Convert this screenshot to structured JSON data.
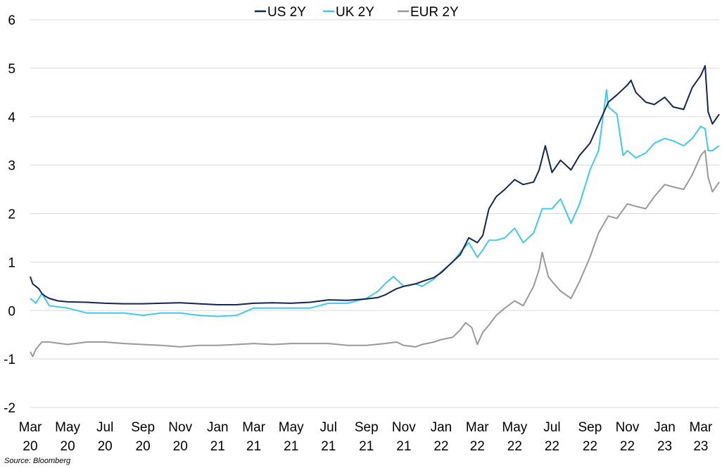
{
  "source": "Source: Bloomberg",
  "chart_data": {
    "type": "line",
    "title": "",
    "xlabel": "",
    "ylabel": "",
    "ylim": [
      -2,
      6
    ],
    "yticks": [
      -2,
      -1,
      0,
      1,
      2,
      3,
      4,
      5,
      6
    ],
    "grid": "horizontal",
    "legend_position": "top-center",
    "x_start": "2020-03-01",
    "x_end": "2023-03-31",
    "x_ticks": [
      {
        "month": "Mar",
        "year": "20",
        "date": "2020-03-01"
      },
      {
        "month": "May",
        "year": "20",
        "date": "2020-05-01"
      },
      {
        "month": "Jul",
        "year": "20",
        "date": "2020-07-01"
      },
      {
        "month": "Sep",
        "year": "20",
        "date": "2020-09-01"
      },
      {
        "month": "Nov",
        "year": "20",
        "date": "2020-11-01"
      },
      {
        "month": "Jan",
        "year": "21",
        "date": "2021-01-01"
      },
      {
        "month": "Mar",
        "year": "21",
        "date": "2021-03-01"
      },
      {
        "month": "May",
        "year": "21",
        "date": "2021-05-01"
      },
      {
        "month": "Jul",
        "year": "21",
        "date": "2021-07-01"
      },
      {
        "month": "Sep",
        "year": "21",
        "date": "2021-09-01"
      },
      {
        "month": "Nov",
        "year": "21",
        "date": "2021-11-01"
      },
      {
        "month": "Jan",
        "year": "22",
        "date": "2022-01-01"
      },
      {
        "month": "Mar",
        "year": "22",
        "date": "2022-03-01"
      },
      {
        "month": "May",
        "year": "22",
        "date": "2022-05-01"
      },
      {
        "month": "Jul",
        "year": "22",
        "date": "2022-07-01"
      },
      {
        "month": "Sep",
        "year": "22",
        "date": "2022-09-01"
      },
      {
        "month": "Nov",
        "year": "22",
        "date": "2022-11-01"
      },
      {
        "month": "Jan",
        "year": "23",
        "date": "2023-01-01"
      },
      {
        "month": "Mar",
        "year": "23",
        "date": "2023-03-01"
      }
    ],
    "series": [
      {
        "name": "US 2Y",
        "color": "#14254f",
        "points": [
          [
            "2020-03-01",
            0.7
          ],
          [
            "2020-03-05",
            0.55
          ],
          [
            "2020-03-10",
            0.5
          ],
          [
            "2020-03-15",
            0.45
          ],
          [
            "2020-03-20",
            0.35
          ],
          [
            "2020-03-25",
            0.3
          ],
          [
            "2020-04-01",
            0.25
          ],
          [
            "2020-04-15",
            0.2
          ],
          [
            "2020-05-01",
            0.18
          ],
          [
            "2020-06-01",
            0.17
          ],
          [
            "2020-07-01",
            0.15
          ],
          [
            "2020-08-01",
            0.14
          ],
          [
            "2020-09-01",
            0.14
          ],
          [
            "2020-10-01",
            0.15
          ],
          [
            "2020-11-01",
            0.16
          ],
          [
            "2020-12-01",
            0.14
          ],
          [
            "2021-01-01",
            0.12
          ],
          [
            "2021-02-01",
            0.12
          ],
          [
            "2021-03-01",
            0.15
          ],
          [
            "2021-04-01",
            0.16
          ],
          [
            "2021-05-01",
            0.15
          ],
          [
            "2021-06-01",
            0.17
          ],
          [
            "2021-07-01",
            0.22
          ],
          [
            "2021-08-01",
            0.21
          ],
          [
            "2021-09-01",
            0.24
          ],
          [
            "2021-09-20",
            0.27
          ],
          [
            "2021-10-01",
            0.32
          ],
          [
            "2021-10-20",
            0.45
          ],
          [
            "2021-11-01",
            0.5
          ],
          [
            "2021-11-20",
            0.55
          ],
          [
            "2021-12-01",
            0.6
          ],
          [
            "2021-12-20",
            0.68
          ],
          [
            "2022-01-01",
            0.78
          ],
          [
            "2022-01-15",
            0.95
          ],
          [
            "2022-02-01",
            1.15
          ],
          [
            "2022-02-15",
            1.5
          ],
          [
            "2022-03-01",
            1.4
          ],
          [
            "2022-03-10",
            1.55
          ],
          [
            "2022-03-20",
            2.1
          ],
          [
            "2022-04-01",
            2.35
          ],
          [
            "2022-04-15",
            2.5
          ],
          [
            "2022-05-01",
            2.7
          ],
          [
            "2022-05-15",
            2.6
          ],
          [
            "2022-06-01",
            2.65
          ],
          [
            "2022-06-10",
            2.9
          ],
          [
            "2022-06-20",
            3.4
          ],
          [
            "2022-07-01",
            2.85
          ],
          [
            "2022-07-15",
            3.1
          ],
          [
            "2022-08-01",
            2.9
          ],
          [
            "2022-08-15",
            3.2
          ],
          [
            "2022-09-01",
            3.45
          ],
          [
            "2022-09-15",
            3.85
          ],
          [
            "2022-10-01",
            4.3
          ],
          [
            "2022-10-15",
            4.45
          ],
          [
            "2022-11-01",
            4.65
          ],
          [
            "2022-11-07",
            4.75
          ],
          [
            "2022-11-15",
            4.5
          ],
          [
            "2022-12-01",
            4.3
          ],
          [
            "2022-12-15",
            4.25
          ],
          [
            "2023-01-01",
            4.4
          ],
          [
            "2023-01-15",
            4.2
          ],
          [
            "2023-02-01",
            4.15
          ],
          [
            "2023-02-15",
            4.6
          ],
          [
            "2023-03-01",
            4.85
          ],
          [
            "2023-03-08",
            5.05
          ],
          [
            "2023-03-13",
            4.1
          ],
          [
            "2023-03-20",
            3.85
          ],
          [
            "2023-03-31",
            4.05
          ]
        ]
      },
      {
        "name": "UK 2Y",
        "color": "#42c8ee",
        "points": [
          [
            "2020-03-01",
            0.25
          ],
          [
            "2020-03-10",
            0.15
          ],
          [
            "2020-03-20",
            0.35
          ],
          [
            "2020-04-01",
            0.1
          ],
          [
            "2020-05-01",
            0.05
          ],
          [
            "2020-06-01",
            -0.05
          ],
          [
            "2020-07-01",
            -0.05
          ],
          [
            "2020-08-01",
            -0.05
          ],
          [
            "2020-09-01",
            -0.1
          ],
          [
            "2020-10-01",
            -0.05
          ],
          [
            "2020-11-01",
            -0.05
          ],
          [
            "2020-12-01",
            -0.1
          ],
          [
            "2021-01-01",
            -0.12
          ],
          [
            "2021-02-01",
            -0.1
          ],
          [
            "2021-03-01",
            0.05
          ],
          [
            "2021-04-01",
            0.05
          ],
          [
            "2021-05-01",
            0.05
          ],
          [
            "2021-06-01",
            0.05
          ],
          [
            "2021-07-01",
            0.15
          ],
          [
            "2021-08-01",
            0.15
          ],
          [
            "2021-09-01",
            0.25
          ],
          [
            "2021-09-20",
            0.4
          ],
          [
            "2021-10-01",
            0.55
          ],
          [
            "2021-10-15",
            0.7
          ],
          [
            "2021-11-01",
            0.5
          ],
          [
            "2021-11-20",
            0.55
          ],
          [
            "2021-12-01",
            0.5
          ],
          [
            "2021-12-20",
            0.65
          ],
          [
            "2022-01-01",
            0.8
          ],
          [
            "2022-01-20",
            1.0
          ],
          [
            "2022-02-01",
            1.2
          ],
          [
            "2022-02-15",
            1.4
          ],
          [
            "2022-03-01",
            1.1
          ],
          [
            "2022-03-10",
            1.25
          ],
          [
            "2022-03-20",
            1.45
          ],
          [
            "2022-04-01",
            1.45
          ],
          [
            "2022-04-15",
            1.5
          ],
          [
            "2022-05-01",
            1.7
          ],
          [
            "2022-05-15",
            1.4
          ],
          [
            "2022-06-01",
            1.6
          ],
          [
            "2022-06-15",
            2.1
          ],
          [
            "2022-07-01",
            2.1
          ],
          [
            "2022-07-15",
            2.3
          ],
          [
            "2022-08-01",
            1.8
          ],
          [
            "2022-08-15",
            2.2
          ],
          [
            "2022-09-01",
            2.9
          ],
          [
            "2022-09-15",
            3.3
          ],
          [
            "2022-09-28",
            4.55
          ],
          [
            "2022-10-01",
            4.2
          ],
          [
            "2022-10-15",
            4.05
          ],
          [
            "2022-10-25",
            3.2
          ],
          [
            "2022-11-01",
            3.3
          ],
          [
            "2022-11-15",
            3.15
          ],
          [
            "2022-12-01",
            3.25
          ],
          [
            "2022-12-15",
            3.45
          ],
          [
            "2023-01-01",
            3.55
          ],
          [
            "2023-01-15",
            3.5
          ],
          [
            "2023-02-01",
            3.4
          ],
          [
            "2023-02-15",
            3.55
          ],
          [
            "2023-03-01",
            3.8
          ],
          [
            "2023-03-08",
            3.75
          ],
          [
            "2023-03-13",
            3.3
          ],
          [
            "2023-03-20",
            3.3
          ],
          [
            "2023-03-31",
            3.4
          ]
        ]
      },
      {
        "name": "EUR 2Y",
        "color": "#999999",
        "points": [
          [
            "2020-03-01",
            -0.85
          ],
          [
            "2020-03-05",
            -0.95
          ],
          [
            "2020-03-10",
            -0.8
          ],
          [
            "2020-03-20",
            -0.65
          ],
          [
            "2020-04-01",
            -0.65
          ],
          [
            "2020-05-01",
            -0.7
          ],
          [
            "2020-06-01",
            -0.65
          ],
          [
            "2020-07-01",
            -0.65
          ],
          [
            "2020-08-01",
            -0.68
          ],
          [
            "2020-09-01",
            -0.7
          ],
          [
            "2020-10-01",
            -0.72
          ],
          [
            "2020-11-01",
            -0.75
          ],
          [
            "2020-12-01",
            -0.72
          ],
          [
            "2021-01-01",
            -0.72
          ],
          [
            "2021-02-01",
            -0.7
          ],
          [
            "2021-03-01",
            -0.68
          ],
          [
            "2021-04-01",
            -0.7
          ],
          [
            "2021-05-01",
            -0.68
          ],
          [
            "2021-06-01",
            -0.68
          ],
          [
            "2021-07-01",
            -0.68
          ],
          [
            "2021-08-01",
            -0.72
          ],
          [
            "2021-09-01",
            -0.72
          ],
          [
            "2021-10-01",
            -0.68
          ],
          [
            "2021-10-20",
            -0.65
          ],
          [
            "2021-11-01",
            -0.72
          ],
          [
            "2021-11-20",
            -0.75
          ],
          [
            "2021-12-01",
            -0.7
          ],
          [
            "2021-12-20",
            -0.65
          ],
          [
            "2022-01-01",
            -0.6
          ],
          [
            "2022-01-20",
            -0.55
          ],
          [
            "2022-02-01",
            -0.4
          ],
          [
            "2022-02-10",
            -0.25
          ],
          [
            "2022-02-20",
            -0.35
          ],
          [
            "2022-03-01",
            -0.7
          ],
          [
            "2022-03-10",
            -0.45
          ],
          [
            "2022-03-20",
            -0.3
          ],
          [
            "2022-04-01",
            -0.1
          ],
          [
            "2022-04-15",
            0.05
          ],
          [
            "2022-05-01",
            0.2
          ],
          [
            "2022-05-15",
            0.1
          ],
          [
            "2022-06-01",
            0.5
          ],
          [
            "2022-06-10",
            0.85
          ],
          [
            "2022-06-15",
            1.2
          ],
          [
            "2022-06-25",
            0.7
          ],
          [
            "2022-07-01",
            0.6
          ],
          [
            "2022-07-15",
            0.4
          ],
          [
            "2022-08-01",
            0.25
          ],
          [
            "2022-08-15",
            0.6
          ],
          [
            "2022-09-01",
            1.1
          ],
          [
            "2022-09-15",
            1.6
          ],
          [
            "2022-10-01",
            1.95
          ],
          [
            "2022-10-15",
            1.9
          ],
          [
            "2022-11-01",
            2.2
          ],
          [
            "2022-11-15",
            2.15
          ],
          [
            "2022-12-01",
            2.1
          ],
          [
            "2022-12-15",
            2.35
          ],
          [
            "2023-01-01",
            2.6
          ],
          [
            "2023-01-15",
            2.55
          ],
          [
            "2023-02-01",
            2.5
          ],
          [
            "2023-02-15",
            2.8
          ],
          [
            "2023-03-01",
            3.2
          ],
          [
            "2023-03-08",
            3.3
          ],
          [
            "2023-03-13",
            2.75
          ],
          [
            "2023-03-20",
            2.45
          ],
          [
            "2023-03-31",
            2.65
          ]
        ]
      }
    ]
  }
}
